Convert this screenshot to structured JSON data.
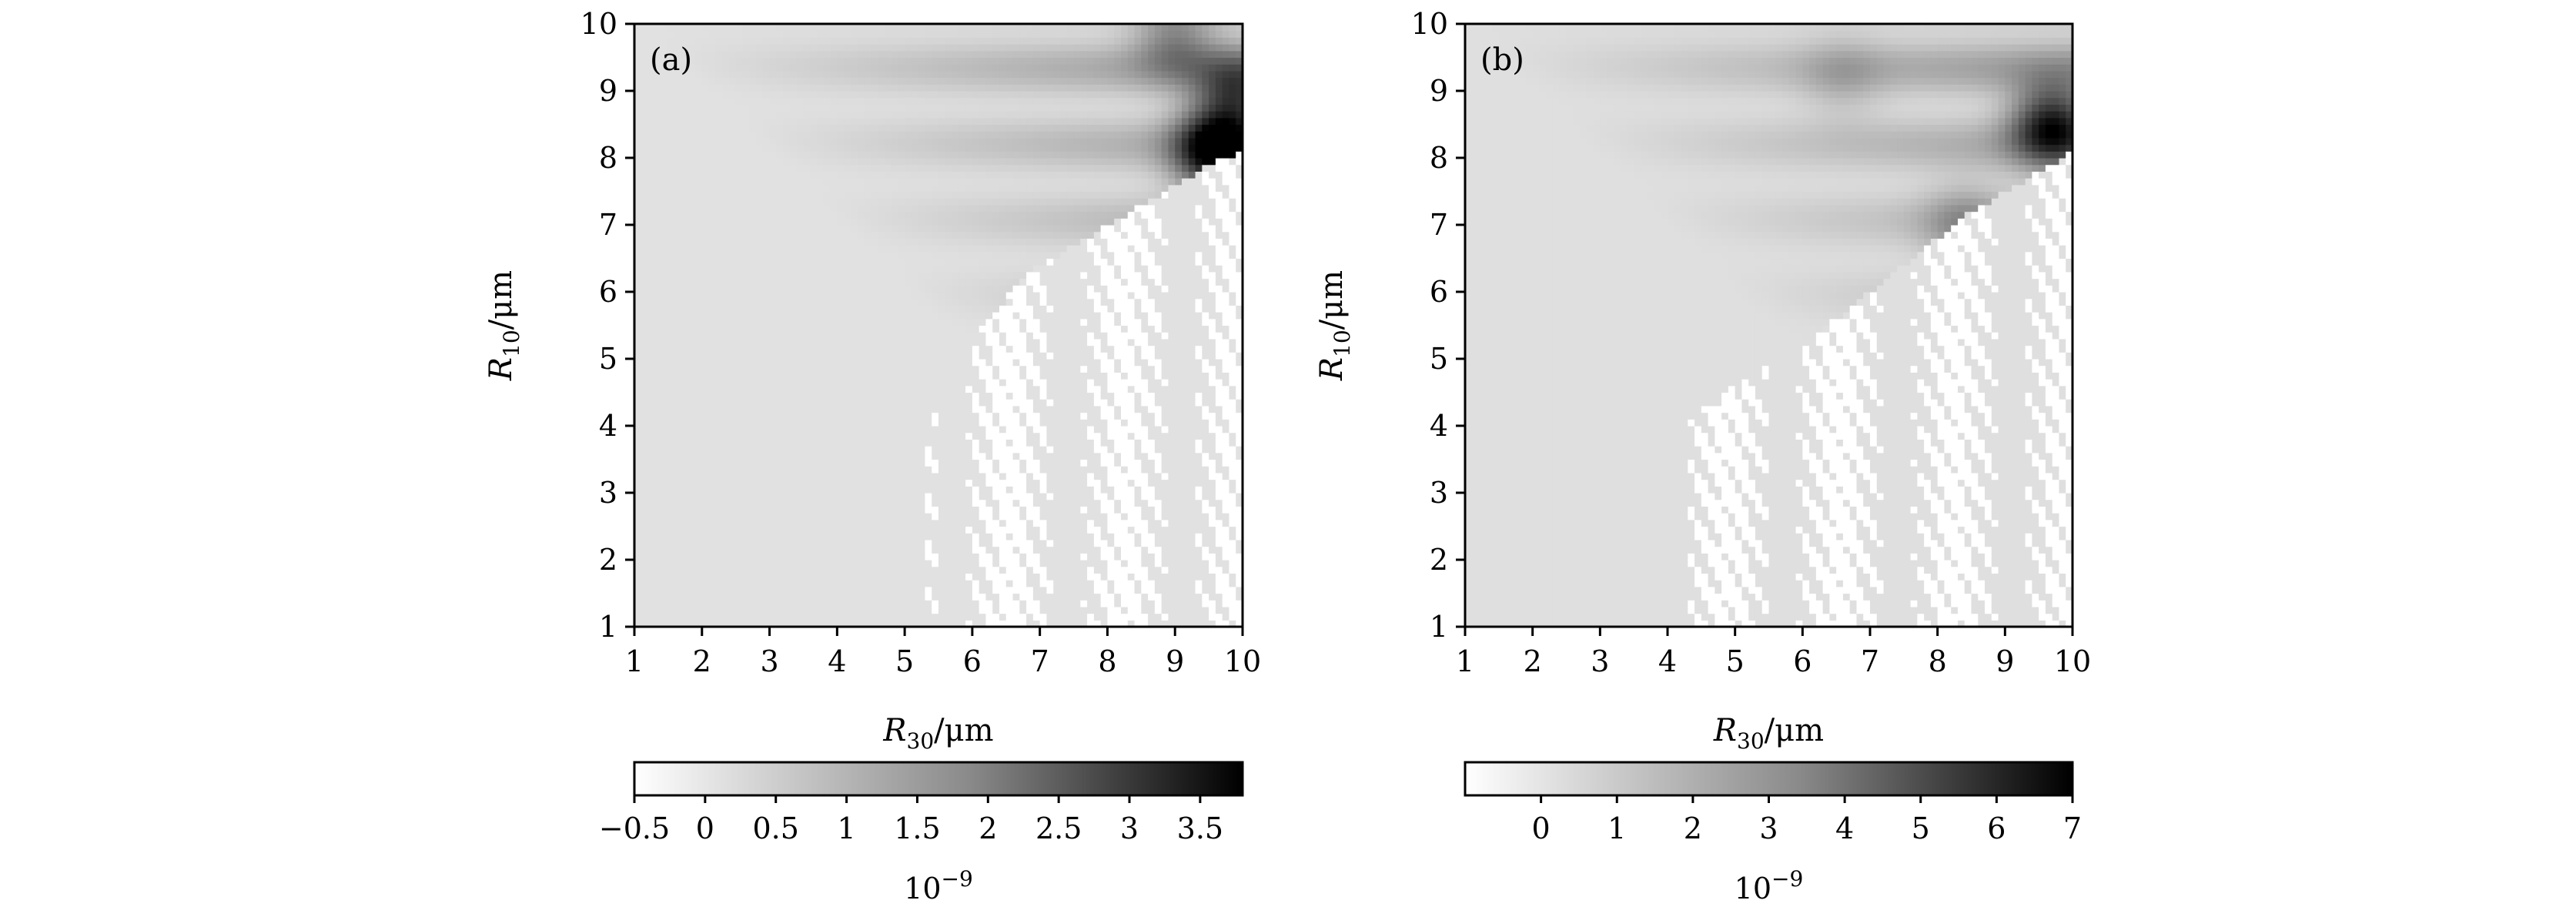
{
  "chart_data": [
    {
      "type": "heatmap",
      "panel_label": "(a)",
      "xlabel_main": "R",
      "xlabel_sub": "30",
      "xlabel_unit": "/μm",
      "ylabel_main": "R",
      "ylabel_sub": "10",
      "ylabel_unit": "/μm",
      "xlim": [
        1,
        10
      ],
      "ylim": [
        1,
        10
      ],
      "xticks": [
        "1",
        "2",
        "3",
        "4",
        "5",
        "6",
        "7",
        "8",
        "9",
        "10"
      ],
      "yticks": [
        "1",
        "2",
        "3",
        "4",
        "5",
        "6",
        "7",
        "8",
        "9",
        "10"
      ],
      "colormap": "gray_r",
      "colorbar": {
        "range": [
          -0.5,
          3.8
        ],
        "ticks": [
          -0.5,
          0,
          0.5,
          1,
          1.5,
          2,
          2.5,
          3,
          3.5
        ],
        "tick_labels": [
          "−0.5",
          "0",
          "0.5",
          "1",
          "1.5",
          "2",
          "2.5",
          "3",
          "3.5"
        ],
        "scale_base": "10",
        "scale_exp": "−9"
      },
      "background_value": 0.0,
      "dark_spots": [
        {
          "x": 9.6,
          "y": 8.1,
          "value": 3.6
        },
        {
          "x": 9.9,
          "y": 8.9,
          "value": 2.2
        },
        {
          "x": 9.0,
          "y": 9.8,
          "value": 1.3
        }
      ],
      "boundary_x": [
        5.3,
        5.6,
        6.0,
        6.5,
        7.0,
        7.5,
        8.0,
        8.5,
        9.0,
        9.5,
        10.0
      ],
      "boundary_y": [
        4.0,
        4.6,
        5.3,
        5.9,
        6.4,
        6.7,
        7.0,
        7.3,
        7.6,
        7.9,
        8.1
      ]
    },
    {
      "type": "heatmap",
      "panel_label": "(b)",
      "xlabel_main": "R",
      "xlabel_sub": "30",
      "xlabel_unit": "/μm",
      "ylabel_main": "R",
      "ylabel_sub": "10",
      "ylabel_unit": "/μm",
      "xlim": [
        1,
        10
      ],
      "ylim": [
        1,
        10
      ],
      "xticks": [
        "1",
        "2",
        "3",
        "4",
        "5",
        "6",
        "7",
        "8",
        "9",
        "10"
      ],
      "yticks": [
        "1",
        "2",
        "3",
        "4",
        "5",
        "6",
        "7",
        "8",
        "9",
        "10"
      ],
      "colormap": "gray_r",
      "colorbar": {
        "range": [
          -1,
          7
        ],
        "ticks": [
          0,
          1,
          2,
          3,
          4,
          5,
          6,
          7
        ],
        "tick_labels": [
          "0",
          "1",
          "2",
          "3",
          "4",
          "5",
          "6",
          "7"
        ],
        "scale_base": "10",
        "scale_exp": "−9"
      },
      "background_value": 0.0,
      "dark_spots": [
        {
          "x": 9.7,
          "y": 8.5,
          "value": 5.8
        },
        {
          "x": 8.4,
          "y": 7.0,
          "value": 1.8
        },
        {
          "x": 6.6,
          "y": 9.2,
          "value": 1.0
        }
      ],
      "boundary_x": [
        4.3,
        5.0,
        5.8,
        6.5,
        7.0,
        7.5,
        8.0,
        8.5,
        9.0,
        9.5,
        10.0
      ],
      "boundary_y": [
        4.1,
        4.6,
        5.1,
        5.6,
        6.0,
        6.4,
        6.8,
        7.2,
        7.5,
        7.8,
        8.1
      ]
    }
  ]
}
